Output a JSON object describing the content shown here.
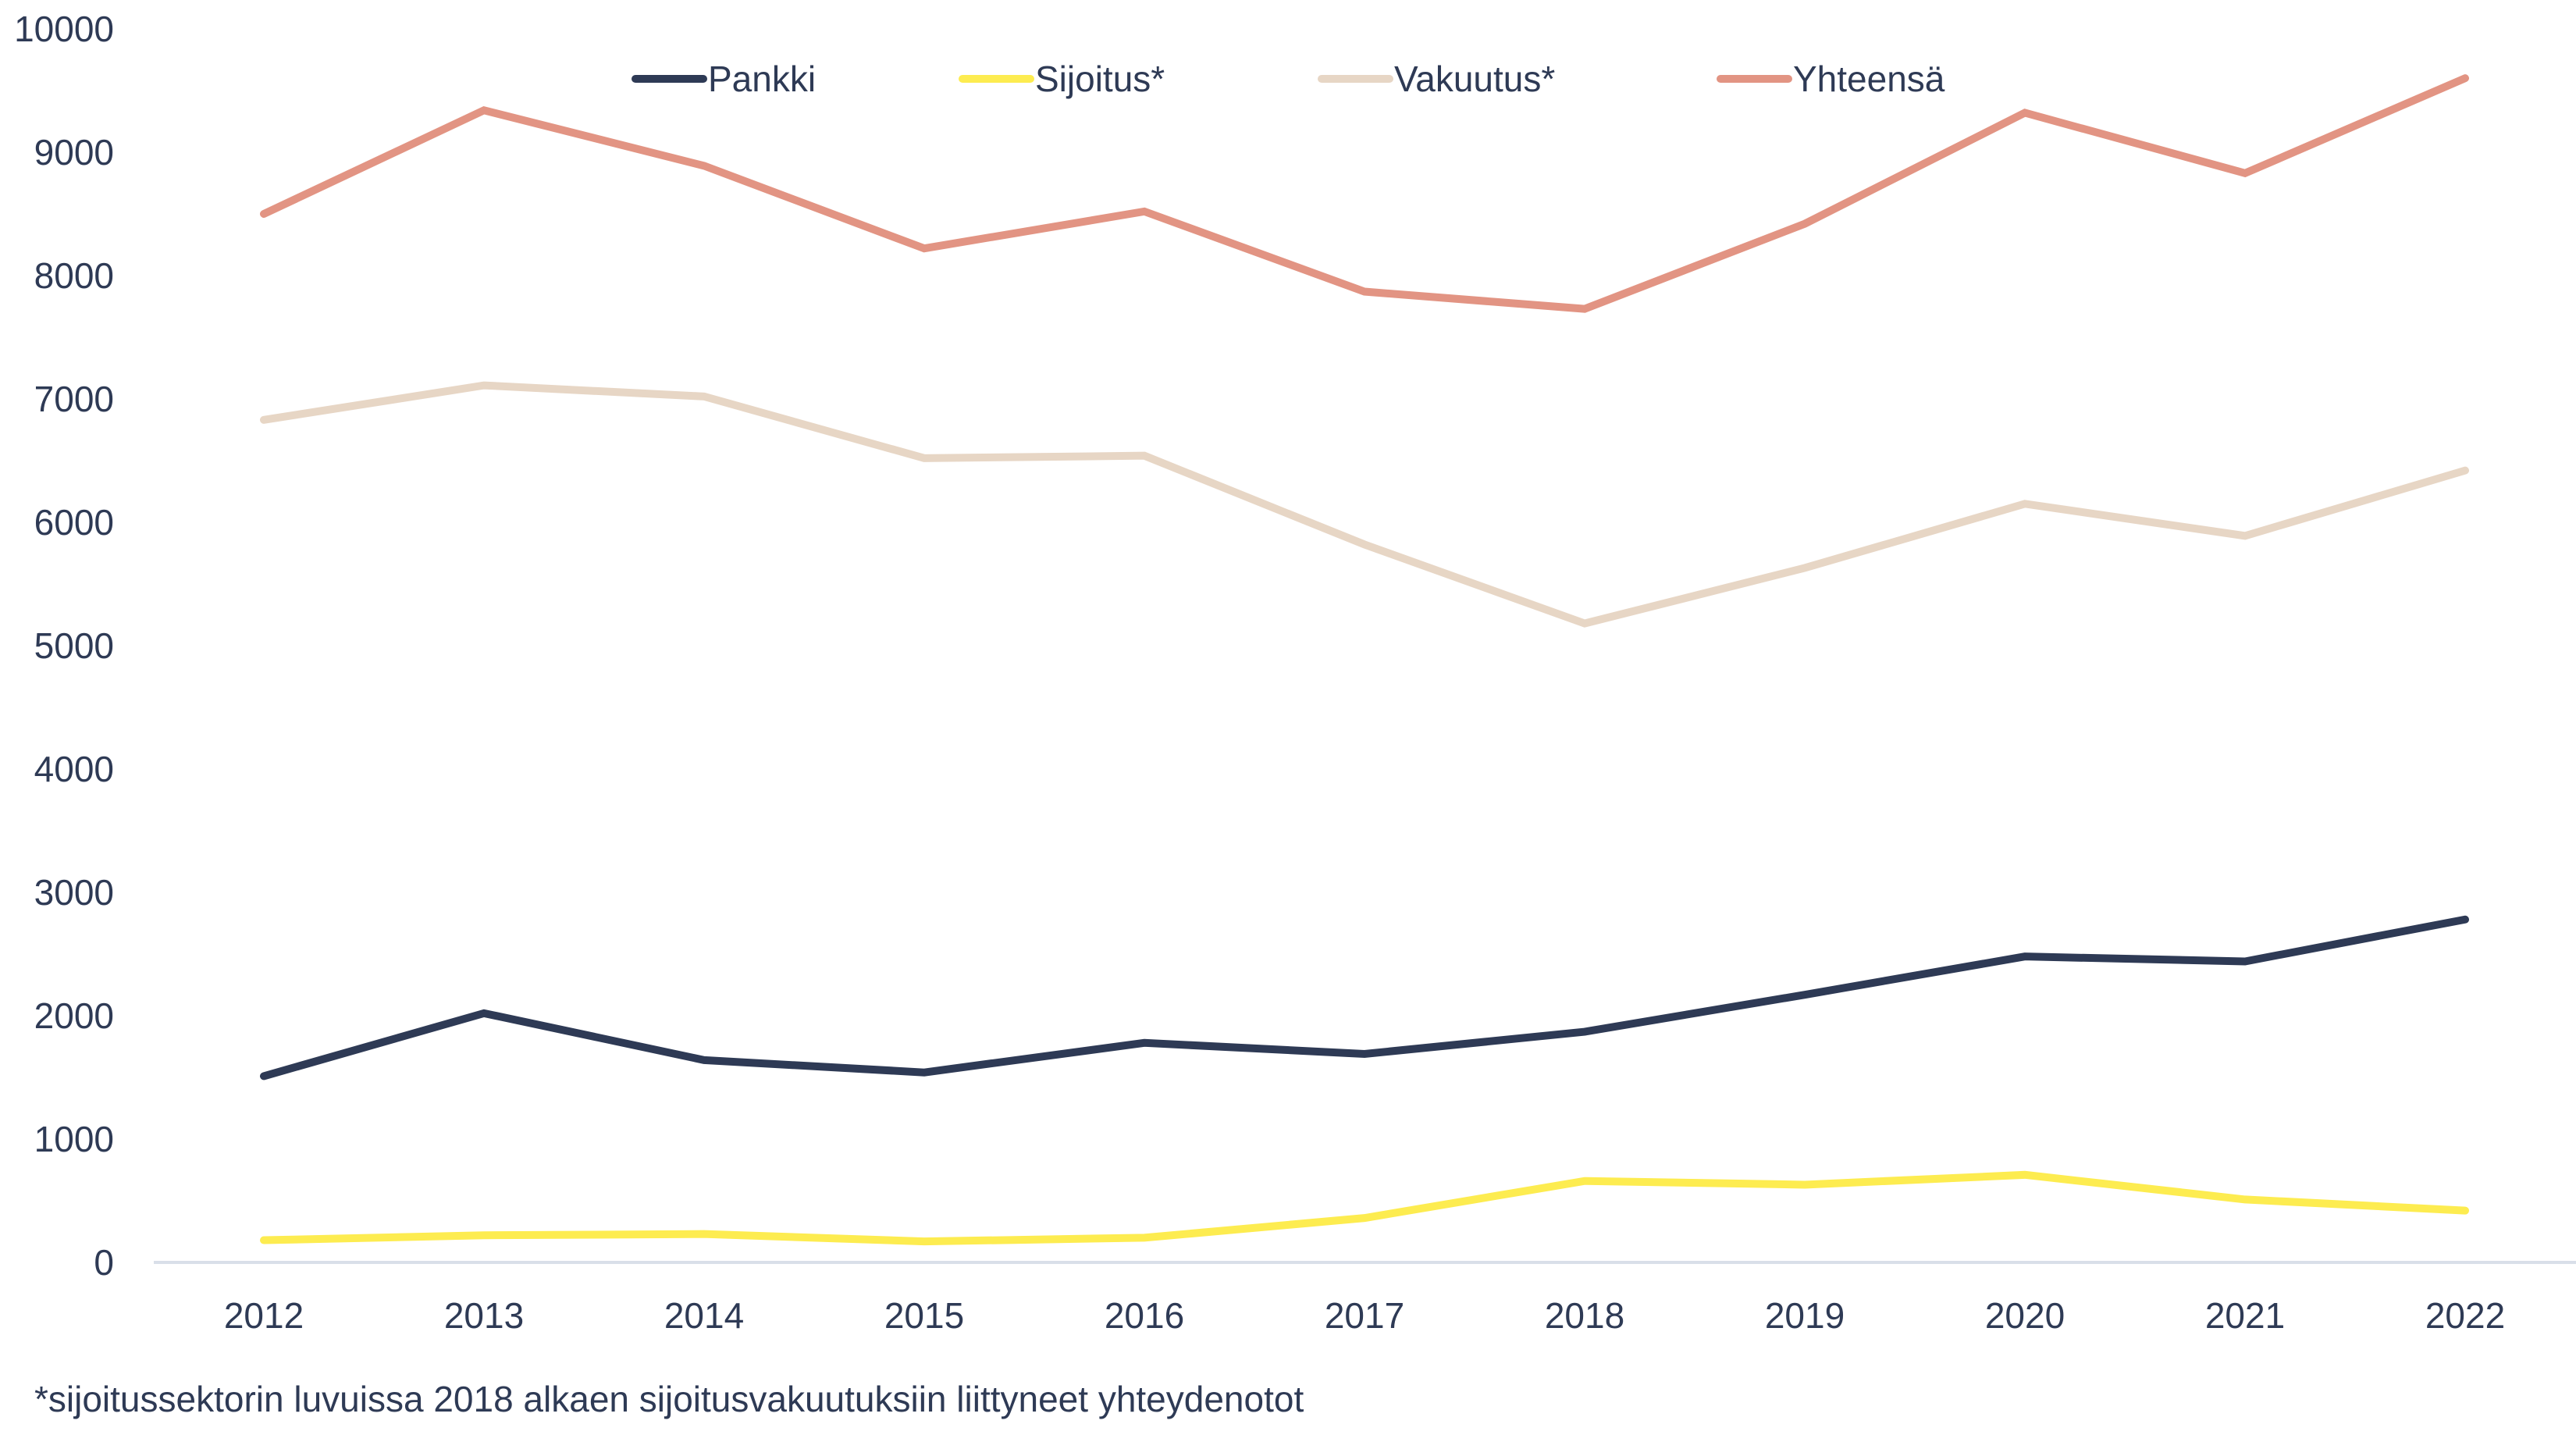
{
  "chart_data": {
    "type": "line",
    "title": "",
    "xlabel": "",
    "ylabel": "",
    "categories": [
      "2012",
      "2013",
      "2014",
      "2015",
      "2016",
      "2017",
      "2018",
      "2019",
      "2020",
      "2021",
      "2022"
    ],
    "ylim": [
      0,
      10000
    ],
    "yticks": [
      "0",
      "1000",
      "2000",
      "3000",
      "4000",
      "5000",
      "6000",
      "7000",
      "8000",
      "9000",
      "10000"
    ],
    "grid": false,
    "legend_position": "top-center",
    "series": [
      {
        "name": "Pankki",
        "color": "#2e3a55",
        "values": [
          1510,
          2020,
          1640,
          1540,
          1780,
          1690,
          1870,
          2170,
          2480,
          2440,
          2780
        ]
      },
      {
        "name": "Sijoitus*",
        "color": "#fdec50",
        "values": [
          180,
          220,
          230,
          170,
          200,
          360,
          660,
          630,
          710,
          510,
          420
        ]
      },
      {
        "name": "Vakuutus*",
        "color": "#e7d6c5",
        "values": [
          6830,
          7110,
          7020,
          6520,
          6540,
          5820,
          5180,
          5630,
          6150,
          5890,
          6420
        ]
      },
      {
        "name": "Yhteensä",
        "color": "#e29483",
        "values": [
          8500,
          9340,
          8890,
          8220,
          8520,
          7870,
          7730,
          8420,
          9320,
          8830,
          9600
        ]
      }
    ],
    "axis_color": "#d9dfe9",
    "text_color": "#2e3a55",
    "footnote": "*sijoitussektorin luvuissa 2018 alkaen sijoitusvakuutuksiin liittyneet yhteydenotot"
  }
}
